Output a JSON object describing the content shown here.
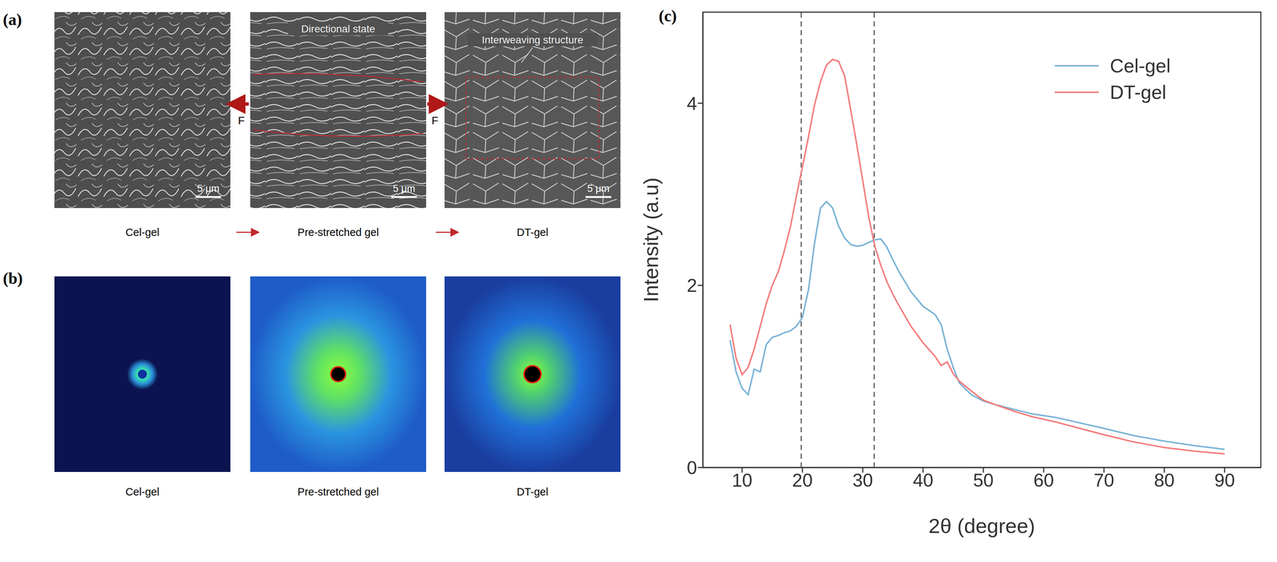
{
  "figure": {
    "panels": [
      {
        "label": "(a)",
        "images": [
          {
            "caption": "Cel-gel",
            "scale_bar": "5 μm"
          },
          {
            "caption": "Pre-stretched gel",
            "scale_bar": "5 μm",
            "annotation": "Directional state",
            "force_labels": [
              "F",
              "F"
            ]
          },
          {
            "caption": "DT-gel",
            "scale_bar": "5 μm",
            "annotation": "Interweaving structure"
          }
        ]
      },
      {
        "label": "(b)",
        "images": [
          {
            "caption": "Cel-gel"
          },
          {
            "caption": "Pre-stretched gel"
          },
          {
            "caption": "DT-gel"
          }
        ]
      }
    ],
    "chart_label": "(c)"
  },
  "chart_data": {
    "type": "line",
    "x_label": "2θ (degree)",
    "y_label": "Intensity (a.u)",
    "x": [
      8,
      9,
      10,
      11,
      12,
      13,
      14,
      15,
      16,
      17,
      18,
      19,
      20,
      21,
      22,
      23,
      24,
      25,
      26,
      27,
      28,
      29,
      30,
      31,
      32,
      33,
      34,
      35,
      36,
      38,
      40,
      42,
      43,
      44,
      45,
      46,
      48,
      50,
      52,
      55,
      58,
      62,
      66,
      70,
      75,
      80,
      85,
      90
    ],
    "series": [
      {
        "name": "Cel-gel",
        "color": "#7ab3d6",
        "values": [
          1.4,
          1.05,
          0.87,
          0.8,
          1.08,
          1.05,
          1.35,
          1.43,
          1.45,
          1.48,
          1.5,
          1.55,
          1.65,
          1.95,
          2.46,
          2.85,
          2.92,
          2.85,
          2.65,
          2.52,
          2.45,
          2.43,
          2.44,
          2.47,
          2.5,
          2.51,
          2.42,
          2.28,
          2.15,
          1.93,
          1.77,
          1.68,
          1.57,
          1.3,
          1.1,
          0.93,
          0.8,
          0.73,
          0.69,
          0.64,
          0.59,
          0.55,
          0.49,
          0.43,
          0.35,
          0.29,
          0.24,
          0.2
        ]
      },
      {
        "name": "DT-gel",
        "color": "#f47c7c",
        "values": [
          1.57,
          1.2,
          1.02,
          1.1,
          1.3,
          1.55,
          1.8,
          2.0,
          2.15,
          2.38,
          2.64,
          2.98,
          3.3,
          3.63,
          3.98,
          4.24,
          4.42,
          4.48,
          4.46,
          4.3,
          3.93,
          3.55,
          3.15,
          2.75,
          2.43,
          2.22,
          2.04,
          1.9,
          1.78,
          1.55,
          1.37,
          1.22,
          1.12,
          1.16,
          1.03,
          0.95,
          0.84,
          0.74,
          0.69,
          0.62,
          0.56,
          0.5,
          0.43,
          0.36,
          0.28,
          0.22,
          0.18,
          0.15
        ]
      }
    ],
    "reference_lines": [
      19.8,
      31.9
    ],
    "xlim": [
      3.5,
      96
    ],
    "xticks": [
      10,
      20,
      30,
      40,
      50,
      60,
      70,
      80,
      90
    ],
    "ylim": [
      0,
      5
    ],
    "yticks": [
      0,
      2,
      4
    ],
    "grid": false,
    "legend": "upper right"
  }
}
